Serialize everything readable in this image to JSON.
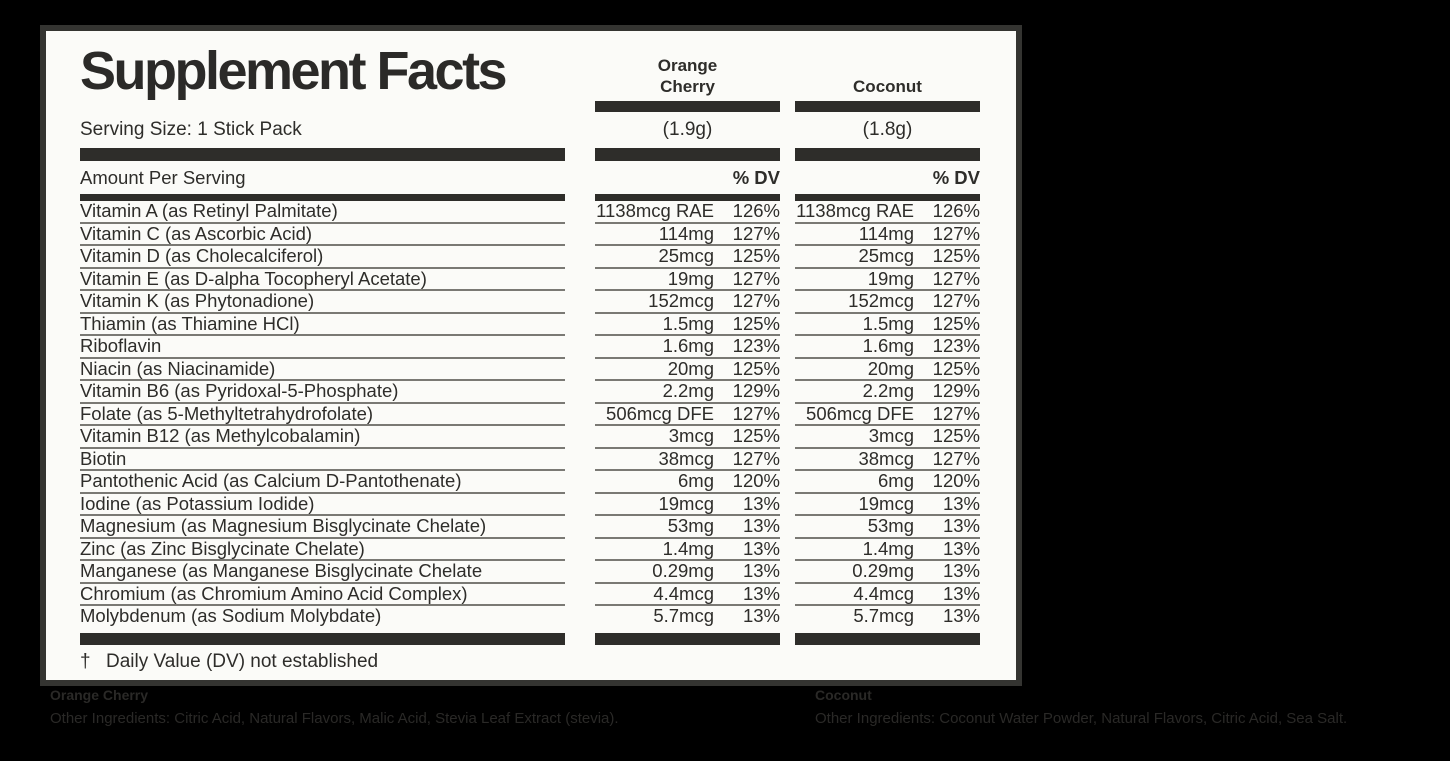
{
  "panel": {
    "title": "Supplement Facts",
    "serving_size_label": "Serving Size: 1 Stick Pack",
    "amount_per_serving_label": "Amount Per Serving",
    "percent_dv_label": "% DV",
    "footnote_symbol": "†",
    "footnote_text": "Daily Value (DV) not established",
    "flavors": [
      {
        "name_lines": [
          "Orange",
          "Cherry"
        ],
        "serving_weight": "(1.9g)"
      },
      {
        "name_lines": [
          "Coconut"
        ],
        "serving_weight": "(1.8g)"
      }
    ],
    "nutrients": [
      {
        "name": "Vitamin A (as Retinyl Palmitate)",
        "flavor1_amount": "1138mcg RAE",
        "flavor1_dv": "126%",
        "flavor2_amount": "1138mcg RAE",
        "flavor2_dv": "126%"
      },
      {
        "name": "Vitamin C (as Ascorbic Acid)",
        "flavor1_amount": "114mg",
        "flavor1_dv": "127%",
        "flavor2_amount": "114mg",
        "flavor2_dv": "127%"
      },
      {
        "name": "Vitamin D (as Cholecalciferol)",
        "flavor1_amount": "25mcg",
        "flavor1_dv": "125%",
        "flavor2_amount": "25mcg",
        "flavor2_dv": "125%"
      },
      {
        "name": "Vitamin E (as D-alpha Tocopheryl Acetate)",
        "flavor1_amount": "19mg",
        "flavor1_dv": "127%",
        "flavor2_amount": "19mg",
        "flavor2_dv": "127%"
      },
      {
        "name": "Vitamin K (as Phytonadione)",
        "flavor1_amount": "152mcg",
        "flavor1_dv": "127%",
        "flavor2_amount": "152mcg",
        "flavor2_dv": "127%"
      },
      {
        "name": "Thiamin (as Thiamine HCl)",
        "flavor1_amount": "1.5mg",
        "flavor1_dv": "125%",
        "flavor2_amount": "1.5mg",
        "flavor2_dv": "125%"
      },
      {
        "name": "Riboflavin",
        "flavor1_amount": "1.6mg",
        "flavor1_dv": "123%",
        "flavor2_amount": "1.6mg",
        "flavor2_dv": "123%"
      },
      {
        "name": "Niacin (as Niacinamide)",
        "flavor1_amount": "20mg",
        "flavor1_dv": "125%",
        "flavor2_amount": "20mg",
        "flavor2_dv": "125%"
      },
      {
        "name": "Vitamin B6 (as Pyridoxal-5-Phosphate)",
        "flavor1_amount": "2.2mg",
        "flavor1_dv": "129%",
        "flavor2_amount": "2.2mg",
        "flavor2_dv": "129%"
      },
      {
        "name": "Folate (as 5-Methyltetrahydrofolate)",
        "flavor1_amount": "506mcg DFE",
        "flavor1_dv": "127%",
        "flavor2_amount": "506mcg DFE",
        "flavor2_dv": "127%"
      },
      {
        "name": "Vitamin B12 (as Methylcobalamin)",
        "flavor1_amount": "3mcg",
        "flavor1_dv": "125%",
        "flavor2_amount": "3mcg",
        "flavor2_dv": "125%"
      },
      {
        "name": "Biotin",
        "flavor1_amount": "38mcg",
        "flavor1_dv": "127%",
        "flavor2_amount": "38mcg",
        "flavor2_dv": "127%"
      },
      {
        "name": "Pantothenic Acid (as Calcium D-Pantothenate)",
        "flavor1_amount": "6mg",
        "flavor1_dv": "120%",
        "flavor2_amount": "6mg",
        "flavor2_dv": "120%"
      },
      {
        "name": "Iodine (as Potassium Iodide)",
        "flavor1_amount": "19mcg",
        "flavor1_dv": "13%",
        "flavor2_amount": "19mcg",
        "flavor2_dv": "13%"
      },
      {
        "name": "Magnesium (as Magnesium Bisglycinate Chelate)",
        "flavor1_amount": "53mg",
        "flavor1_dv": "13%",
        "flavor2_amount": "53mg",
        "flavor2_dv": "13%"
      },
      {
        "name": "Zinc (as Zinc Bisglycinate Chelate)",
        "flavor1_amount": "1.4mg",
        "flavor1_dv": "13%",
        "flavor2_amount": "1.4mg",
        "flavor2_dv": "13%"
      },
      {
        "name": "Manganese (as Manganese Bisglycinate Chelate",
        "flavor1_amount": "0.29mg",
        "flavor1_dv": "13%",
        "flavor2_amount": "0.29mg",
        "flavor2_dv": "13%"
      },
      {
        "name": "Chromium (as Chromium Amino Acid Complex)",
        "flavor1_amount": "4.4mcg",
        "flavor1_dv": "13%",
        "flavor2_amount": "4.4mcg",
        "flavor2_dv": "13%"
      },
      {
        "name": "Molybdenum (as Sodium Molybdate)",
        "flavor1_amount": "5.7mcg",
        "flavor1_dv": "13%",
        "flavor2_amount": "5.7mcg",
        "flavor2_dv": "13%"
      }
    ]
  },
  "below_label": {
    "left": {
      "heading": "Orange Cherry",
      "ingredients": "Other Ingredients: Citric Acid, Natural Flavors, Malic Acid, Stevia Leaf Extract (stevia)."
    },
    "right": {
      "heading": "Coconut",
      "ingredients": "Other Ingredients: Coconut Water Powder, Natural Flavors, Citric Acid, Sea Salt."
    }
  },
  "colors": {
    "background": "#000000",
    "panel_background": "#fbfbf8",
    "panel_border": "#343431",
    "ink": "#2e2d2a",
    "row_rule": "#7a7974",
    "below_text": "#2a2927"
  }
}
